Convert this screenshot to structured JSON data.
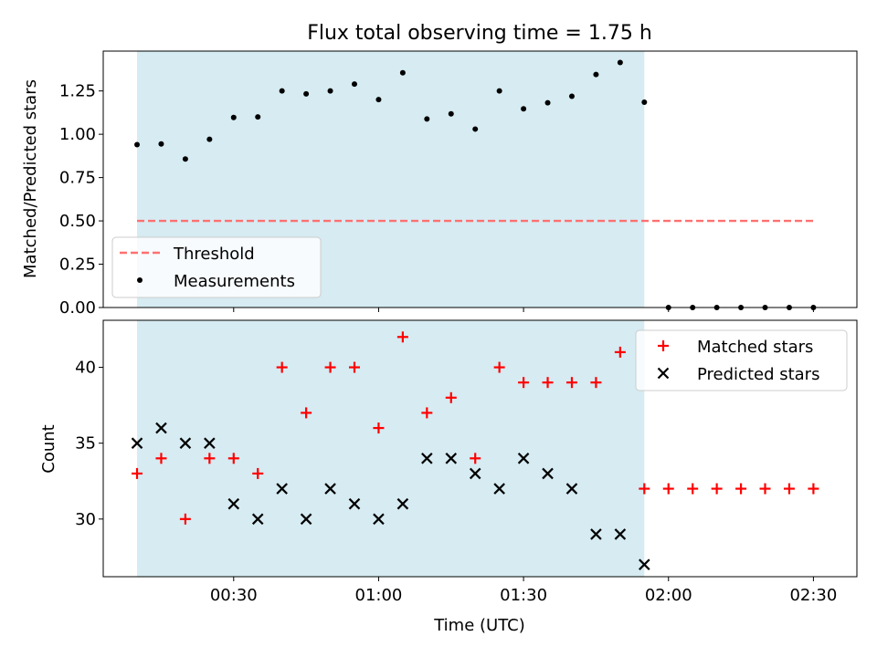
{
  "colors": {
    "shade": "#add8e6",
    "threshold": "#ff7070",
    "measurements": "#000000",
    "matched": "#ff0000",
    "predicted": "#000000"
  },
  "chart_data": [
    {
      "type": "scatter",
      "title": "Flux total observing time = 1.75 h",
      "ylabel": "Matched/Predicted stars",
      "xlim": [
        3,
        159
      ],
      "ylim": [
        0.0,
        1.48
      ],
      "yticks": [
        0.0,
        0.25,
        0.5,
        0.75,
        1.0,
        1.25
      ],
      "ytick_labels": [
        "0.00",
        "0.25",
        "0.50",
        "0.75",
        "1.00",
        "1.25"
      ],
      "shaded_span": [
        10,
        115
      ],
      "threshold": {
        "name": "Threshold",
        "value": 0.5,
        "x_range": [
          10,
          150
        ]
      },
      "legend_position": "lower-left",
      "series": [
        {
          "name": "Measurements",
          "x": [
            10,
            15,
            20,
            25,
            30,
            35,
            40,
            45,
            50,
            55,
            60,
            65,
            70,
            75,
            80,
            85,
            90,
            95,
            100,
            105,
            110,
            115,
            120,
            125,
            130,
            135,
            140,
            145,
            150
          ],
          "y": [
            0.94,
            0.944,
            0.857,
            0.971,
            1.097,
            1.1,
            1.25,
            1.233,
            1.25,
            1.29,
            1.2,
            1.355,
            1.088,
            1.118,
            1.03,
            1.25,
            1.147,
            1.182,
            1.219,
            1.345,
            1.414,
            1.185,
            0.0,
            0.0,
            0.0,
            0.0,
            0.0,
            0.0,
            0.0
          ]
        }
      ]
    },
    {
      "type": "scatter",
      "ylabel": "Count",
      "xlabel": "Time (UTC)",
      "xlim": [
        3,
        159
      ],
      "ylim": [
        26.2,
        43.1
      ],
      "yticks": [
        30,
        35,
        40
      ],
      "ytick_labels": [
        "30",
        "35",
        "40"
      ],
      "xticks": [
        30,
        60,
        90,
        120,
        150
      ],
      "xtick_labels": [
        "00:30",
        "01:00",
        "01:30",
        "02:00",
        "02:30"
      ],
      "shaded_span": [
        10,
        115
      ],
      "legend_position": "upper-right",
      "series": [
        {
          "name": "Matched stars",
          "marker": "plus",
          "x": [
            10,
            15,
            20,
            25,
            30,
            35,
            40,
            45,
            50,
            55,
            60,
            65,
            70,
            75,
            80,
            85,
            90,
            95,
            100,
            105,
            110,
            115,
            120,
            125,
            130,
            135,
            140,
            145,
            150
          ],
          "y": [
            33,
            34,
            30,
            34,
            34,
            33,
            40,
            37,
            40,
            40,
            36,
            42,
            37,
            38,
            34,
            40,
            39,
            39,
            39,
            39,
            41,
            32,
            32,
            32,
            32,
            32,
            32,
            32,
            32
          ]
        },
        {
          "name": "Predicted stars",
          "marker": "x",
          "x": [
            10,
            15,
            20,
            25,
            30,
            35,
            40,
            45,
            50,
            55,
            60,
            65,
            70,
            75,
            80,
            85,
            90,
            95,
            100,
            105,
            110,
            115
          ],
          "y": [
            35,
            36,
            35,
            35,
            31,
            30,
            32,
            30,
            32,
            31,
            30,
            31,
            34,
            34,
            33,
            32,
            34,
            33,
            32,
            29,
            29,
            27
          ]
        }
      ]
    }
  ]
}
